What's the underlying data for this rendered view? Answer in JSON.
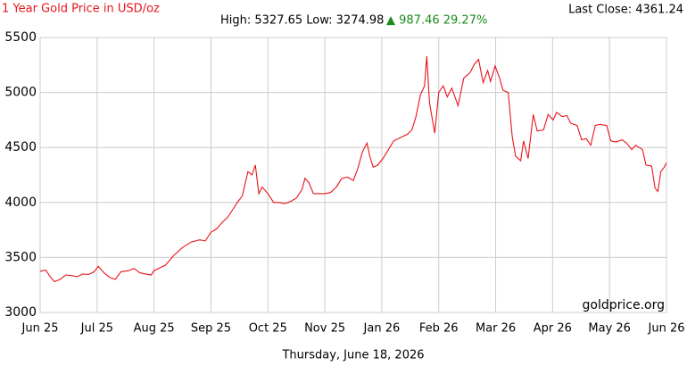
{
  "chart_data": {
    "type": "line",
    "title": "1 Year Gold Price in USD/oz",
    "high_low": "High: 5327.65 Low: 3274.98",
    "change": "▲ 987.46 29.27%",
    "last_close": "Last Close: 4361.24",
    "watermark": "goldprice.org",
    "date": "Thursday, June 18, 2026",
    "color": "#e8141b",
    "grid": true,
    "xlim": [
      0,
      11
    ],
    "xticks": [
      {
        "value": 0,
        "label": "Jun 25"
      },
      {
        "value": 1,
        "label": "Jul 25"
      },
      {
        "value": 2,
        "label": "Aug 25"
      },
      {
        "value": 3,
        "label": "Sep 25"
      },
      {
        "value": 4,
        "label": "Oct 25"
      },
      {
        "value": 5,
        "label": "Nov 25"
      },
      {
        "value": 6,
        "label": "Jan 26"
      },
      {
        "value": 7,
        "label": "Feb 26"
      },
      {
        "value": 8,
        "label": "Mar 26"
      },
      {
        "value": 9,
        "label": "Apr 26"
      },
      {
        "value": 10,
        "label": "May 26"
      },
      {
        "value": 11,
        "label": "Jun 26"
      }
    ],
    "ylim": [
      3000,
      5500
    ],
    "yticks": [
      3000,
      3500,
      4000,
      4500,
      5000,
      5500
    ],
    "x": [
      0,
      0.1,
      0.17,
      0.25,
      0.35,
      0.45,
      0.55,
      0.65,
      0.75,
      0.85,
      0.95,
      1.02,
      1.12,
      1.22,
      1.32,
      1.42,
      1.55,
      1.65,
      1.75,
      1.85,
      1.95,
      2.0,
      2.2,
      2.35,
      2.5,
      2.65,
      2.8,
      2.9,
      3.0,
      3.1,
      3.2,
      3.3,
      3.4,
      3.45,
      3.55,
      3.65,
      3.72,
      3.78,
      3.84,
      3.9,
      4.0,
      4.1,
      4.2,
      4.3,
      4.4,
      4.5,
      4.6,
      4.65,
      4.72,
      4.8,
      5.0,
      5.1,
      5.2,
      5.3,
      5.4,
      5.5,
      5.58,
      5.66,
      5.74,
      5.79,
      5.85,
      5.93,
      6.02,
      6.21,
      6.45,
      6.53,
      6.6,
      6.68,
      6.75,
      6.79,
      6.84,
      6.93,
      7.0,
      7.08,
      7.15,
      7.23,
      7.34,
      7.44,
      7.55,
      7.63,
      7.7,
      7.78,
      7.86,
      7.91,
      7.99,
      8.07,
      8.13,
      8.22,
      8.29,
      8.35,
      8.44,
      8.49,
      8.57,
      8.66,
      8.73,
      8.84,
      8.92,
      9.01,
      9.07,
      9.17,
      9.25,
      9.32,
      9.43,
      9.51,
      9.59,
      9.67,
      9.75,
      9.83,
      9.95,
      10.02,
      10.11,
      10.22,
      10.3,
      10.39,
      10.46,
      10.58,
      10.64,
      10.74,
      10.8,
      10.85,
      10.9,
      10.96,
      11.0
    ],
    "values": [
      3375,
      3385,
      3330,
      3280,
      3300,
      3340,
      3335,
      3325,
      3350,
      3345,
      3370,
      3420,
      3360,
      3320,
      3300,
      3370,
      3380,
      3400,
      3360,
      3350,
      3340,
      3380,
      3430,
      3520,
      3590,
      3640,
      3660,
      3650,
      3730,
      3760,
      3820,
      3870,
      3950,
      3990,
      4060,
      4280,
      4250,
      4340,
      4080,
      4140,
      4080,
      4000,
      4000,
      3990,
      4010,
      4040,
      4120,
      4220,
      4180,
      4080,
      4080,
      4090,
      4140,
      4220,
      4230,
      4200,
      4310,
      4460,
      4540,
      4420,
      4320,
      4340,
      4400,
      4560,
      4620,
      4660,
      4780,
      4980,
      5060,
      5330,
      4900,
      4630,
      5000,
      5060,
      4960,
      5040,
      4880,
      5130,
      5180,
      5260,
      5300,
      5090,
      5200,
      5100,
      5240,
      5130,
      5020,
      5000,
      4600,
      4420,
      4380,
      4560,
      4400,
      4800,
      4650,
      4660,
      4800,
      4750,
      4820,
      4780,
      4790,
      4720,
      4700,
      4570,
      4580,
      4520,
      4700,
      4710,
      4700,
      4560,
      4550,
      4570,
      4540,
      4480,
      4520,
      4480,
      4340,
      4330,
      4130,
      4100,
      4280,
      4320,
      4360
    ]
  }
}
